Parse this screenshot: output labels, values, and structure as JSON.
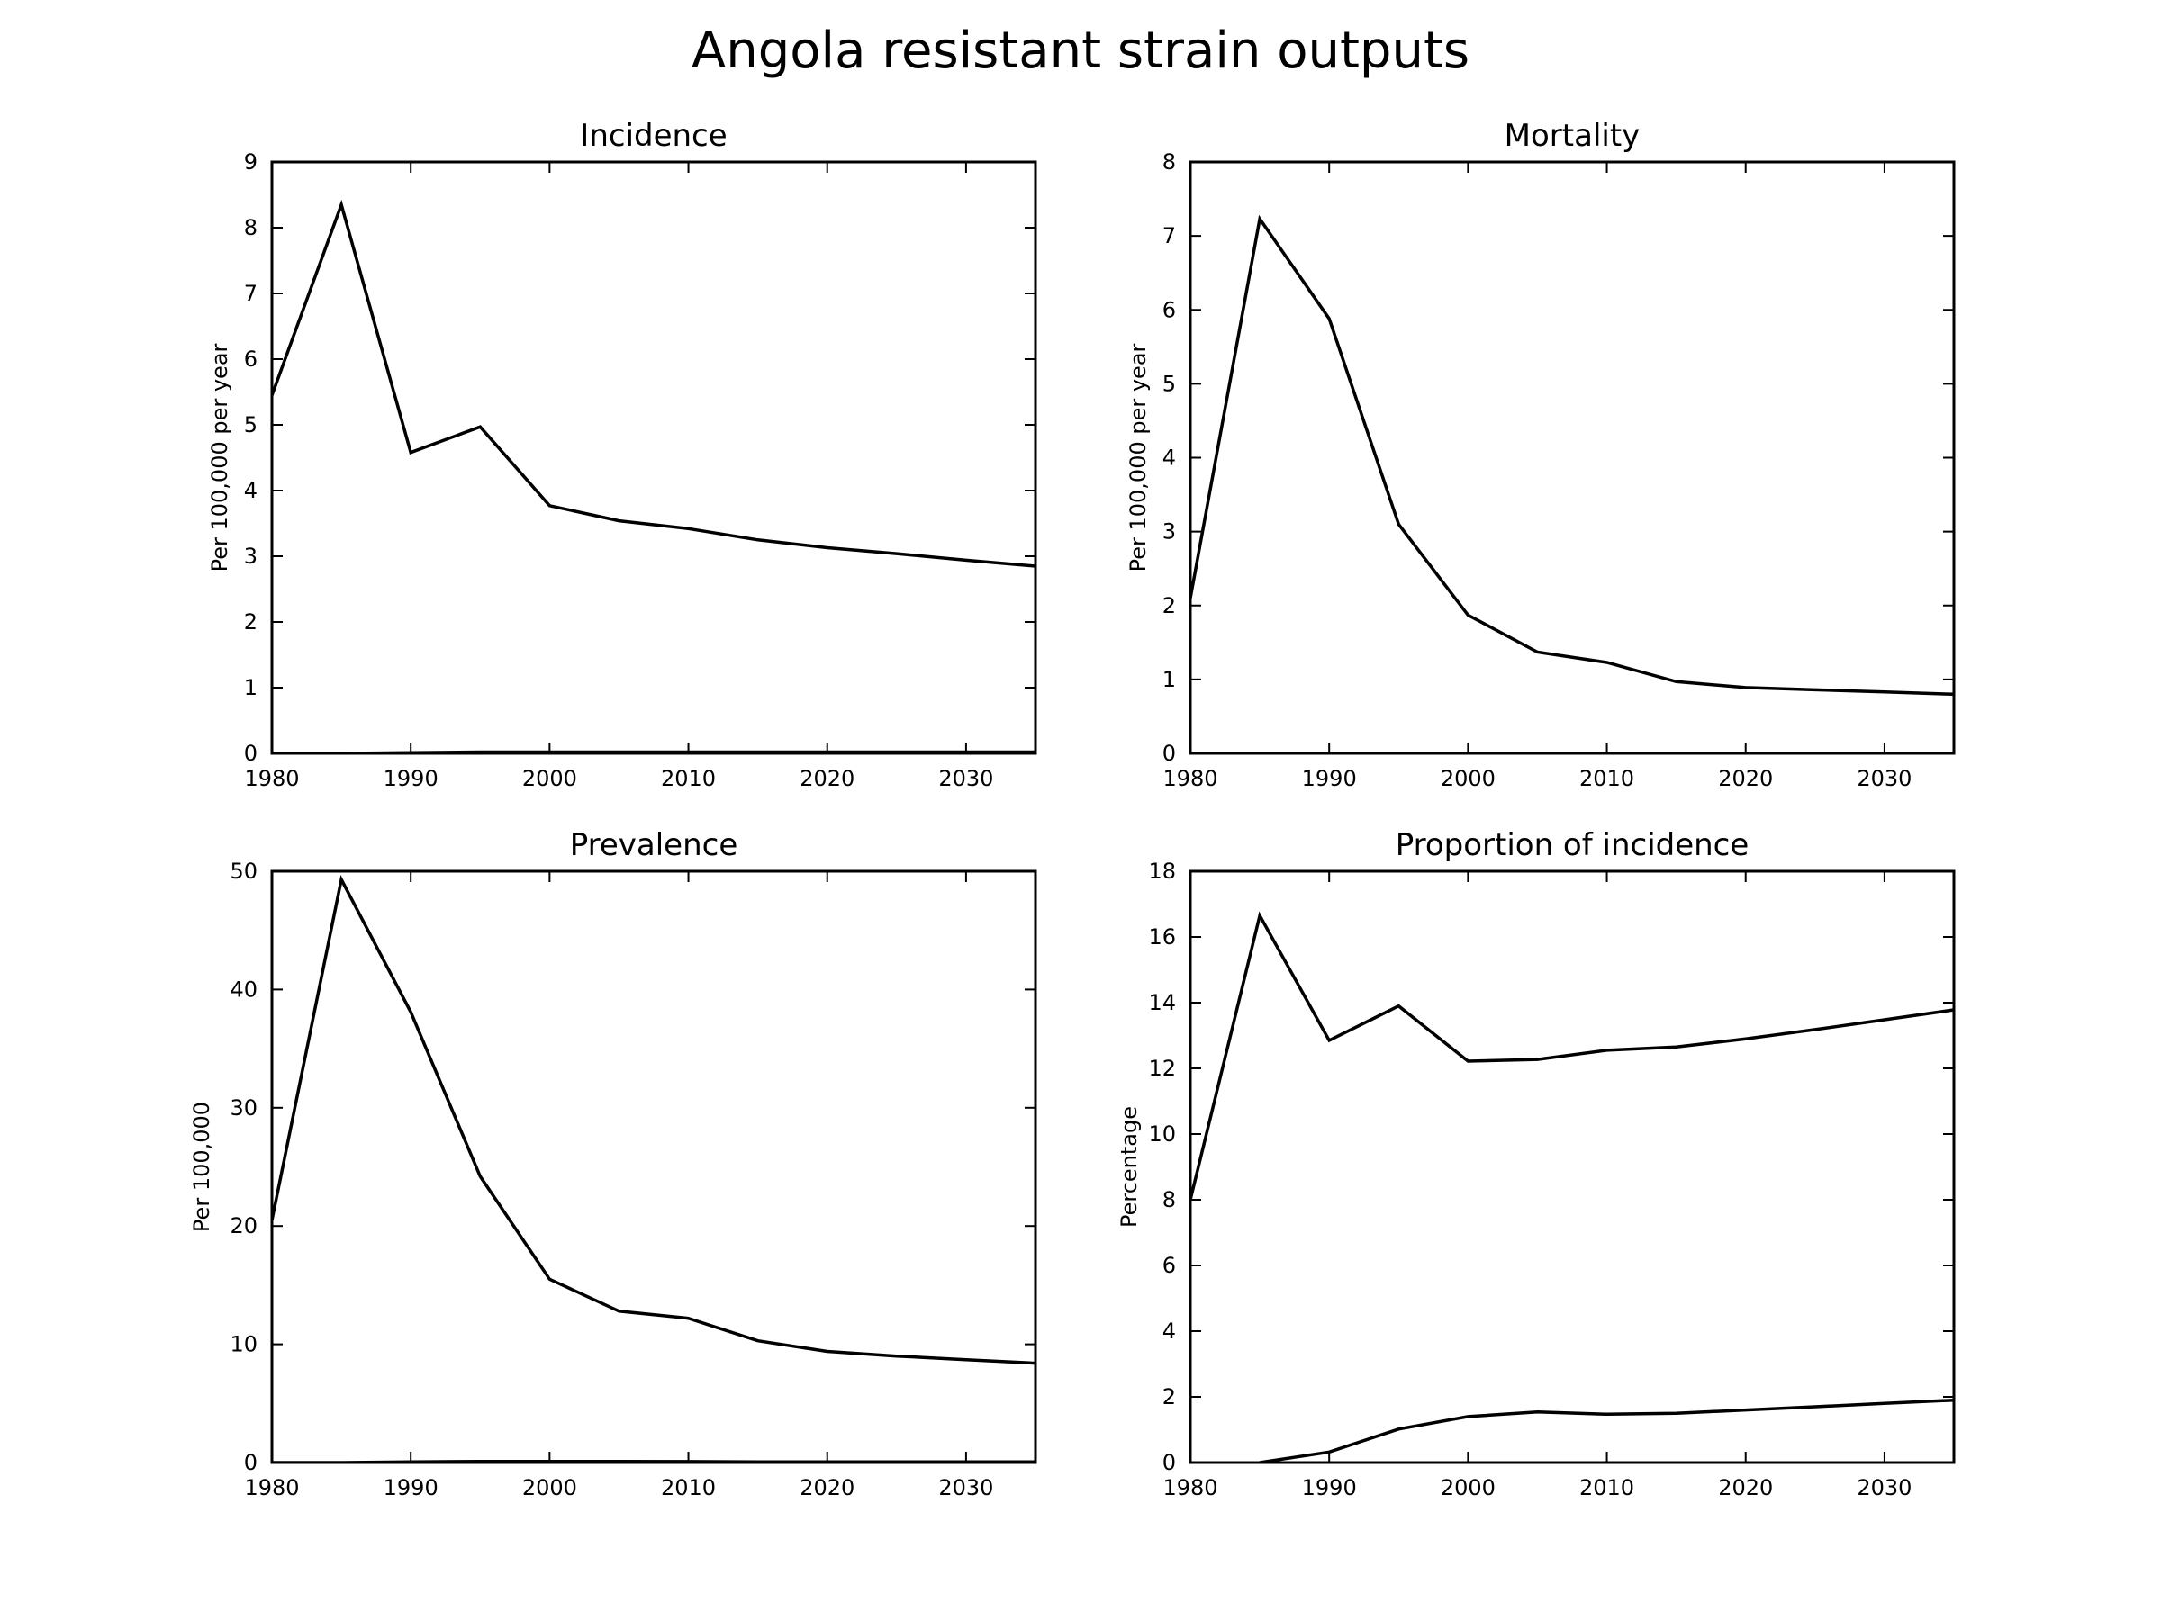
{
  "title": "Angola resistant strain outputs",
  "colors": {
    "line": "#000000",
    "background": "#ffffff"
  },
  "chart_data": [
    {
      "type": "line",
      "title": "Incidence",
      "xlabel": "",
      "ylabel": "Per 100,000 per year",
      "xlim": [
        1980,
        2035
      ],
      "ylim": [
        0,
        9
      ],
      "xticks": [
        1980,
        1990,
        2000,
        2010,
        2020,
        2030
      ],
      "yticks": [
        0,
        1,
        2,
        3,
        4,
        5,
        6,
        7,
        8,
        9
      ],
      "grid": false,
      "series": [
        {
          "x": [
            1980,
            1985,
            1990,
            1995,
            2000,
            2005,
            2010,
            2015,
            2020,
            2025,
            2030,
            2035
          ],
          "values": [
            5.45,
            8.35,
            4.58,
            4.97,
            3.77,
            3.54,
            3.42,
            3.25,
            3.13,
            3.04,
            2.94,
            2.85
          ]
        },
        {
          "x": [
            1980,
            1985,
            1990,
            1995,
            2000,
            2005,
            2010,
            2015,
            2020,
            2025,
            2030,
            2035
          ],
          "values": [
            0,
            0,
            0.01,
            0.02,
            0.02,
            0.02,
            0.02,
            0.02,
            0.02,
            0.02,
            0.02,
            0.02
          ]
        }
      ]
    },
    {
      "type": "line",
      "title": "Mortality",
      "xlabel": "",
      "ylabel": "Per 100,000 per year",
      "xlim": [
        1980,
        2035
      ],
      "ylim": [
        0,
        8
      ],
      "xticks": [
        1980,
        1990,
        2000,
        2010,
        2020,
        2030
      ],
      "yticks": [
        0,
        1,
        2,
        3,
        4,
        5,
        6,
        7,
        8
      ],
      "grid": false,
      "series": [
        {
          "x": [
            1980,
            1985,
            1990,
            1995,
            2000,
            2005,
            2010,
            2015,
            2020,
            2025,
            2030,
            2035
          ],
          "values": [
            2.1,
            7.23,
            5.88,
            3.1,
            1.87,
            1.37,
            1.23,
            0.97,
            0.89,
            0.86,
            0.83,
            0.8
          ]
        }
      ]
    },
    {
      "type": "line",
      "title": "Prevalence",
      "xlabel": "",
      "ylabel": "Per 100,000",
      "xlim": [
        1980,
        2035
      ],
      "ylim": [
        0,
        50
      ],
      "xticks": [
        1980,
        1990,
        2000,
        2010,
        2020,
        2030
      ],
      "yticks": [
        0,
        10,
        20,
        30,
        40,
        50
      ],
      "grid": false,
      "series": [
        {
          "x": [
            1980,
            1985,
            1990,
            1995,
            2000,
            2005,
            2010,
            2015,
            2020,
            2025,
            2030,
            2035
          ],
          "values": [
            20.5,
            49.3,
            38.1,
            24.2,
            15.5,
            12.8,
            12.2,
            10.3,
            9.4,
            9.0,
            8.7,
            8.4
          ]
        },
        {
          "x": [
            1980,
            1985,
            1990,
            1995,
            2000,
            2005,
            2010,
            2015,
            2020,
            2025,
            2030,
            2035
          ],
          "values": [
            0,
            0,
            0.05,
            0.1,
            0.1,
            0.1,
            0.08,
            0.06,
            0.05,
            0.05,
            0.05,
            0.05
          ]
        }
      ]
    },
    {
      "type": "line",
      "title": "Proportion of incidence",
      "xlabel": "",
      "ylabel": "Percentage",
      "xlim": [
        1980,
        2035
      ],
      "ylim": [
        0,
        18
      ],
      "xticks": [
        1980,
        1990,
        2000,
        2010,
        2020,
        2030
      ],
      "yticks": [
        0,
        2,
        4,
        6,
        8,
        10,
        12,
        14,
        16,
        18
      ],
      "grid": false,
      "series": [
        {
          "x": [
            1980,
            1985,
            1990,
            1995,
            2000,
            2005,
            2010,
            2015,
            2020,
            2025,
            2030,
            2035
          ],
          "values": [
            8.0,
            16.65,
            12.85,
            13.9,
            12.22,
            12.27,
            12.55,
            12.65,
            12.9,
            13.18,
            13.48,
            13.78
          ]
        },
        {
          "x": [
            1985,
            1990,
            1995,
            2000,
            2005,
            2010,
            2015,
            2020,
            2025,
            2030,
            2035
          ],
          "values": [
            0,
            0.32,
            1.02,
            1.4,
            1.54,
            1.47,
            1.5,
            1.6,
            1.7,
            1.8,
            1.9
          ]
        }
      ]
    }
  ]
}
